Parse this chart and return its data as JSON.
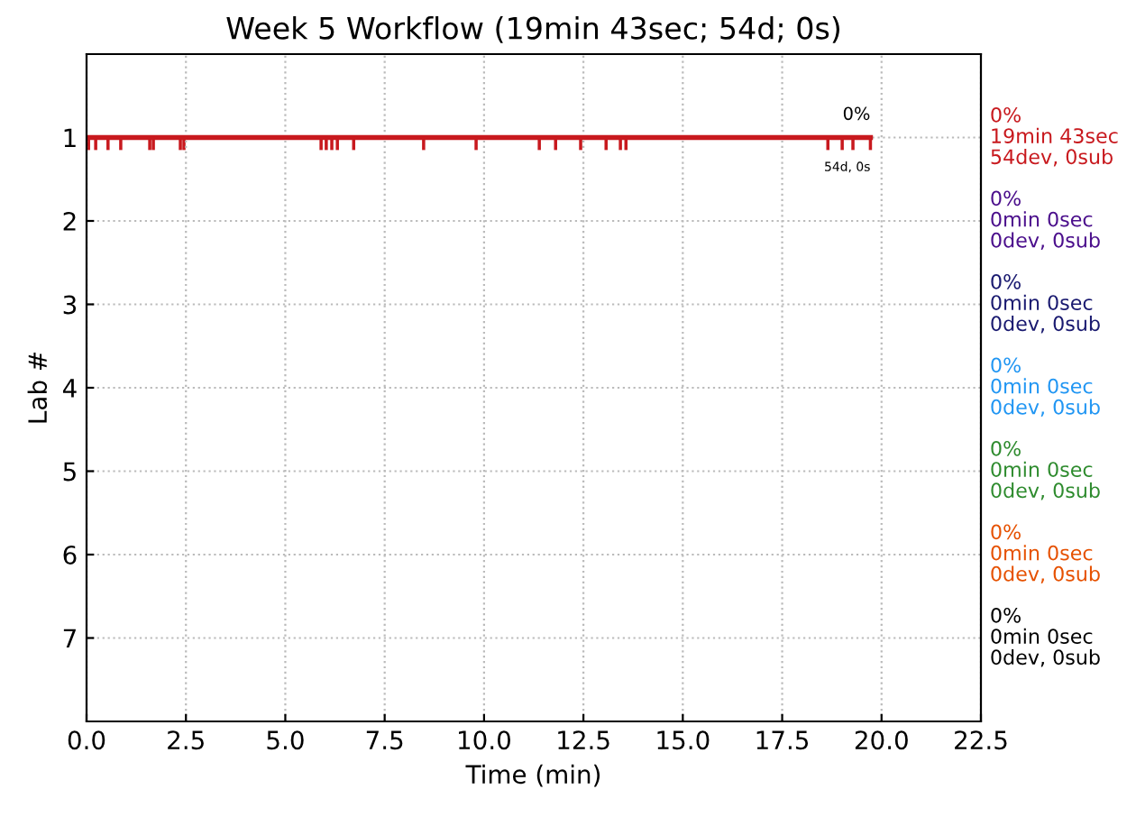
{
  "chart_data": {
    "type": "line",
    "title": "Week 5 Workflow (19min 43sec; 54d; 0s)",
    "xlabel": "Time (min)",
    "ylabel": "Lab #",
    "xlim": [
      0,
      22.5
    ],
    "xticks": [
      {
        "value": 0,
        "label": "0.0"
      },
      2.5,
      {
        "value": 5,
        "label": "5.0"
      },
      7.5,
      {
        "value": 10,
        "label": "10.0"
      },
      12.5,
      {
        "value": 15,
        "label": "15.0"
      },
      17.5,
      {
        "value": 20,
        "label": "20.0"
      },
      22.5
    ],
    "ylim": [
      8,
      0
    ],
    "yticks": [
      1,
      2,
      3,
      4,
      5,
      6,
      7
    ],
    "grid": true,
    "line_style": "solid",
    "marker": "none",
    "series": [
      {
        "name": "0%\n19min 43sec\n54dev, 0sub",
        "color": "#c8191e",
        "x": [
          0,
          19.72
        ],
        "values": [
          1,
          1
        ]
      },
      {
        "color": "#c8191e",
        "type": "bar",
        "base": [
          1,
          1,
          1,
          1,
          1,
          1,
          1,
          1,
          1,
          1,
          1,
          1,
          1,
          1,
          1,
          1,
          1,
          1,
          1,
          1,
          1,
          1,
          1,
          1,
          1
        ],
        "x": [
          0.05,
          0.23,
          0.54,
          0.86,
          1.59,
          1.68,
          2.36,
          2.45,
          5.9,
          6.03,
          6.17,
          6.31,
          6.72,
          8.48,
          9.8,
          11.39,
          11.8,
          12.43,
          13.07,
          13.43,
          13.57,
          18.65,
          19.01,
          19.28,
          19.72
        ],
        "values": [
          0.15,
          0.15,
          0.15,
          0.15,
          0.15,
          0.15,
          0.15,
          0.15,
          0.15,
          0.15,
          0.15,
          0.15,
          0.15,
          0.15,
          0.15,
          0.15,
          0.15,
          0.15,
          0.15,
          0.15,
          0.15,
          0.15,
          0.15,
          0.15,
          0.15
        ]
      },
      {
        "name": "0%\n0min 0sec\n0dev, 0sub",
        "color": "#4b0f8c"
      },
      {
        "name": "0%\n0min 0sec\n0dev, 0sub",
        "color": "#1a1a70"
      },
      {
        "name": "0%\n0min 0sec\n0dev, 0sub",
        "color": "#2196f3"
      },
      {
        "name": "0%\n0min 0sec\n0dev, 0sub",
        "color": "#2e8b2e"
      },
      {
        "name": "0%\n0min 0sec\n0dev, 0sub",
        "color": "#e65100"
      },
      {
        "name": "0%\n0min 0sec\n0dev, 0sub",
        "color": "#000000"
      }
    ],
    "annotations": [
      "0%",
      "54d, 0s"
    ]
  }
}
